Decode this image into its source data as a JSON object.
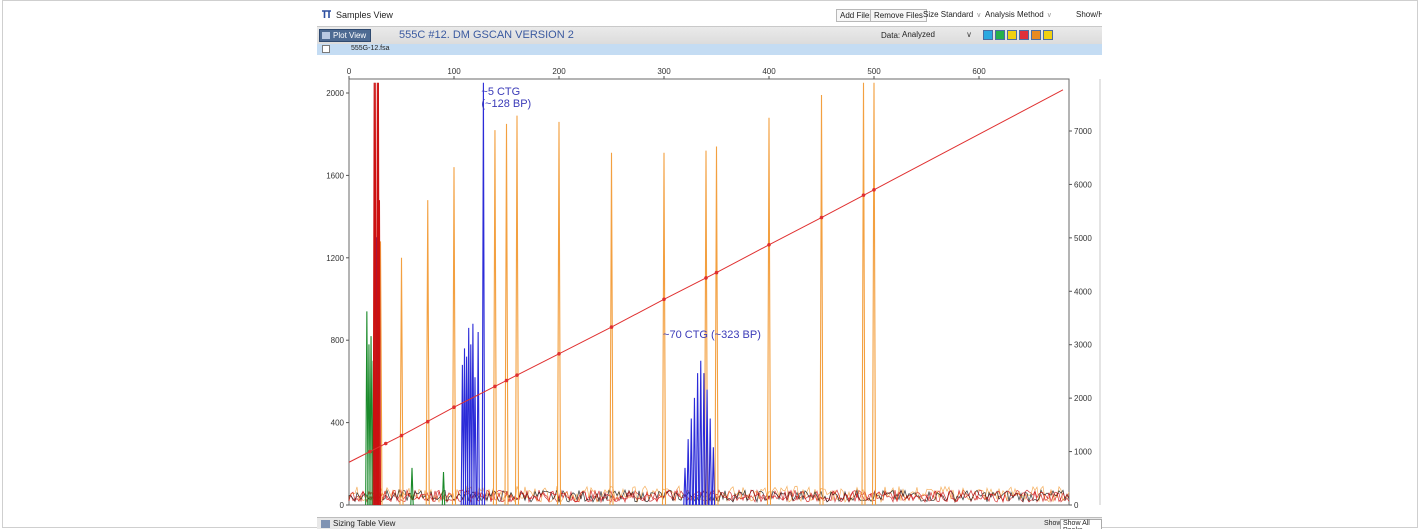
{
  "window": {
    "title": "Samples View",
    "toolbar": {
      "add_files": "Add Files",
      "remove_files": "Remove Files",
      "size_standard": "Size Standard",
      "analysis_method": "Analysis Method",
      "show": "Show/H"
    }
  },
  "plot_view": {
    "tab_label": "Plot View",
    "heading": "555C #12. DM GSCAN VERSION 2",
    "data_label": "Data:",
    "data_value": "Analyzed",
    "dye_colors": [
      "#2aa8e0",
      "#25b04a",
      "#f0d010",
      "#e0303a",
      "#e88a20",
      "#f0d010"
    ]
  },
  "sample": {
    "name": "555G-12.fsa"
  },
  "bottom": {
    "sizing_table": "Sizing Table View",
    "show_label": "Show:",
    "show_value": "Show All Peaks"
  },
  "chart_data": {
    "type": "line",
    "x_axis": {
      "label": "",
      "range": [
        0,
        680
      ],
      "ticks": [
        0,
        100,
        200,
        300,
        400,
        500,
        600
      ]
    },
    "y_axis_left": {
      "label": "",
      "range": [
        0,
        2000
      ],
      "ticks": [
        0,
        400,
        800,
        1200,
        1600,
        2000
      ]
    },
    "y_axis_right": {
      "label": "",
      "range": [
        0,
        8000
      ],
      "ticks": [
        0,
        1000,
        2000,
        3000,
        4000,
        5000,
        6000,
        7000
      ]
    },
    "size_standard_peaks": {
      "color": "#f3a040",
      "peaks": [
        {
          "bp": 30,
          "height": 1280
        },
        {
          "bp": 50,
          "height": 1200
        },
        {
          "bp": 75,
          "height": 1480
        },
        {
          "bp": 100,
          "height": 1640
        },
        {
          "bp": 139,
          "height": 1820
        },
        {
          "bp": 150,
          "height": 1850
        },
        {
          "bp": 160,
          "height": 1890
        },
        {
          "bp": 200,
          "height": 1860
        },
        {
          "bp": 250,
          "height": 1710
        },
        {
          "bp": 300,
          "height": 1710
        },
        {
          "bp": 340,
          "height": 1720
        },
        {
          "bp": 350,
          "height": 1740
        },
        {
          "bp": 400,
          "height": 1880
        },
        {
          "bp": 450,
          "height": 1990
        },
        {
          "bp": 490,
          "height": 2050
        },
        {
          "bp": 500,
          "height": 2050
        }
      ]
    },
    "blue_trace": {
      "color": "#2b2bd8",
      "peaks": [
        {
          "bp": 26,
          "height": 1300
        },
        {
          "bp": 108,
          "height": 680
        },
        {
          "bp": 110,
          "height": 760
        },
        {
          "bp": 112,
          "height": 720
        },
        {
          "bp": 114,
          "height": 860
        },
        {
          "bp": 116,
          "height": 780
        },
        {
          "bp": 118,
          "height": 880
        },
        {
          "bp": 120,
          "height": 620
        },
        {
          "bp": 123,
          "height": 840
        },
        {
          "bp": 128,
          "height": 2050
        },
        {
          "bp": 320,
          "height": 180
        },
        {
          "bp": 323,
          "height": 320
        },
        {
          "bp": 326,
          "height": 420
        },
        {
          "bp": 329,
          "height": 520
        },
        {
          "bp": 332,
          "height": 640
        },
        {
          "bp": 335,
          "height": 700
        },
        {
          "bp": 338,
          "height": 640
        },
        {
          "bp": 341,
          "height": 560
        },
        {
          "bp": 344,
          "height": 420
        },
        {
          "bp": 347,
          "height": 280
        }
      ]
    },
    "green_trace": {
      "color": "#1a8a2a",
      "peaks": [
        {
          "bp": 17,
          "height": 940
        },
        {
          "bp": 19,
          "height": 780
        },
        {
          "bp": 21,
          "height": 820
        },
        {
          "bp": 23,
          "height": 700
        },
        {
          "bp": 27,
          "height": 1300
        },
        {
          "bp": 60,
          "height": 180
        },
        {
          "bp": 90,
          "height": 160
        }
      ]
    },
    "red_trace": {
      "color": "#cc1010",
      "peaks": [
        {
          "bp": 24,
          "height": 2050
        },
        {
          "bp": 25,
          "height": 2050
        },
        {
          "bp": 27,
          "height": 2050
        },
        {
          "bp": 28,
          "height": 2050
        },
        {
          "bp": 29,
          "height": 1480
        }
      ]
    },
    "sizing_curve": {
      "color": "#e03030",
      "points": [
        {
          "bp": 0,
          "data_point": 800
        },
        {
          "bp": 50,
          "data_point": 1300
        },
        {
          "bp": 100,
          "data_point": 1830
        },
        {
          "bp": 150,
          "data_point": 2330
        },
        {
          "bp": 200,
          "data_point": 2830
        },
        {
          "bp": 250,
          "data_point": 3330
        },
        {
          "bp": 300,
          "data_point": 3850
        },
        {
          "bp": 350,
          "data_point": 4350
        },
        {
          "bp": 400,
          "data_point": 4870
        },
        {
          "bp": 450,
          "data_point": 5380
        },
        {
          "bp": 500,
          "data_point": 5900
        },
        {
          "bp": 680,
          "data_point": 7770
        }
      ],
      "markers": [
        {
          "bp": 20,
          "data_point": 1000
        },
        {
          "bp": 35,
          "data_point": 1150
        },
        {
          "bp": 50,
          "data_point": 1300
        },
        {
          "bp": 75,
          "data_point": 1560
        },
        {
          "bp": 100,
          "data_point": 1830
        },
        {
          "bp": 139,
          "data_point": 2220
        },
        {
          "bp": 150,
          "data_point": 2330
        },
        {
          "bp": 160,
          "data_point": 2430
        },
        {
          "bp": 200,
          "data_point": 2830
        },
        {
          "bp": 250,
          "data_point": 3330
        },
        {
          "bp": 300,
          "data_point": 3850
        },
        {
          "bp": 340,
          "data_point": 4250
        },
        {
          "bp": 350,
          "data_point": 4350
        },
        {
          "bp": 400,
          "data_point": 4870
        },
        {
          "bp": 450,
          "data_point": 5380
        },
        {
          "bp": 490,
          "data_point": 5800
        },
        {
          "bp": 500,
          "data_point": 5900
        }
      ]
    },
    "annotations": [
      {
        "lines": [
          "~5 CTG",
          "(~128 BP)"
        ],
        "bp": 128,
        "height": 1990
      },
      {
        "lines": [
          "~70 CTG (~323 BP)"
        ],
        "bp": 301,
        "height": 810
      }
    ]
  }
}
